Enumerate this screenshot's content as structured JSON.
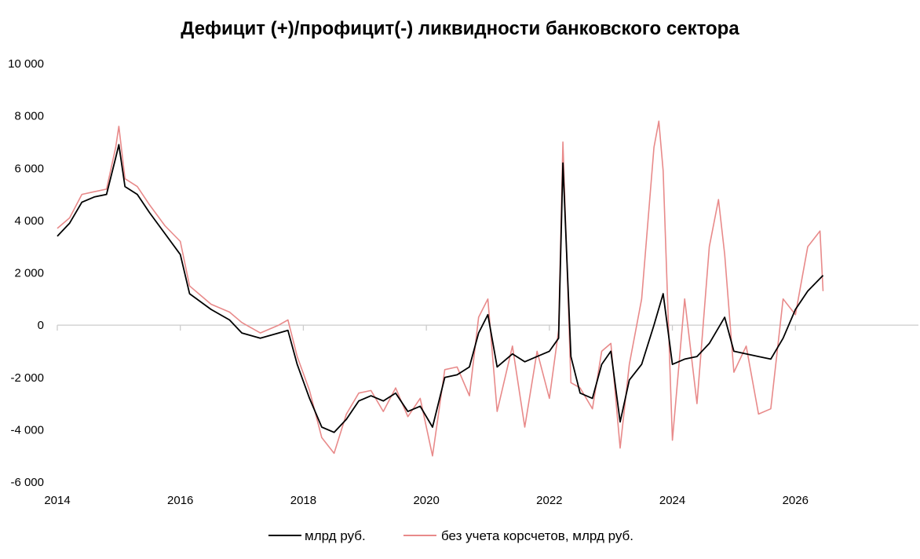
{
  "chart_data": {
    "type": "line",
    "title": "Дефицит (+)/профицит(-) ликвидности банковского сектора",
    "xlabel": "",
    "ylabel": "",
    "xlim": [
      2014,
      2028
    ],
    "ylim": [
      -6000,
      10000
    ],
    "x_ticks": [
      "2014",
      "2016",
      "2018",
      "2020",
      "2022",
      "2024",
      "2026"
    ],
    "y_ticks": [
      "10 000",
      "8 000",
      "6 000",
      "4 000",
      "2 000",
      "0",
      "-2 000",
      "-4 000",
      "-6 000"
    ],
    "grid": false,
    "legend_position": "bottom",
    "series": [
      {
        "name": "млрд руб.",
        "color": "#000000",
        "points": [
          [
            2014.0,
            3400
          ],
          [
            2014.2,
            3900
          ],
          [
            2014.4,
            4700
          ],
          [
            2014.6,
            4900
          ],
          [
            2014.8,
            5000
          ],
          [
            2014.95,
            6400
          ],
          [
            2015.0,
            6900
          ],
          [
            2015.1,
            5300
          ],
          [
            2015.3,
            5000
          ],
          [
            2015.5,
            4300
          ],
          [
            2015.75,
            3500
          ],
          [
            2016.0,
            2700
          ],
          [
            2016.15,
            1200
          ],
          [
            2016.5,
            600
          ],
          [
            2016.8,
            200
          ],
          [
            2017.0,
            -300
          ],
          [
            2017.3,
            -500
          ],
          [
            2017.6,
            -300
          ],
          [
            2017.75,
            -200
          ],
          [
            2017.9,
            -1500
          ],
          [
            2018.1,
            -2800
          ],
          [
            2018.3,
            -3900
          ],
          [
            2018.5,
            -4100
          ],
          [
            2018.7,
            -3600
          ],
          [
            2018.9,
            -2900
          ],
          [
            2019.1,
            -2700
          ],
          [
            2019.3,
            -2900
          ],
          [
            2019.5,
            -2600
          ],
          [
            2019.7,
            -3300
          ],
          [
            2019.9,
            -3100
          ],
          [
            2020.1,
            -3900
          ],
          [
            2020.3,
            -2000
          ],
          [
            2020.5,
            -1900
          ],
          [
            2020.7,
            -1600
          ],
          [
            2020.85,
            -300
          ],
          [
            2021.0,
            400
          ],
          [
            2021.15,
            -1600
          ],
          [
            2021.4,
            -1100
          ],
          [
            2021.6,
            -1400
          ],
          [
            2021.8,
            -1200
          ],
          [
            2022.0,
            -1000
          ],
          [
            2022.15,
            -500
          ],
          [
            2022.22,
            6200
          ],
          [
            2022.35,
            -1200
          ],
          [
            2022.5,
            -2600
          ],
          [
            2022.7,
            -2800
          ],
          [
            2022.85,
            -1500
          ],
          [
            2023.0,
            -1000
          ],
          [
            2023.15,
            -3700
          ],
          [
            2023.3,
            -2100
          ],
          [
            2023.5,
            -1500
          ],
          [
            2023.7,
            0
          ],
          [
            2023.85,
            1200
          ],
          [
            2024.0,
            -1500
          ],
          [
            2024.2,
            -1300
          ],
          [
            2024.4,
            -1200
          ],
          [
            2024.6,
            -700
          ],
          [
            2024.85,
            300
          ],
          [
            2025.0,
            -1000
          ],
          [
            2025.2,
            -1100
          ],
          [
            2025.4,
            -1200
          ],
          [
            2025.6,
            -1300
          ],
          [
            2025.8,
            -500
          ],
          [
            2026.0,
            600
          ],
          [
            2026.2,
            1300
          ],
          [
            2026.45,
            1900
          ]
        ]
      },
      {
        "name": "без учета корсчетов, млрд руб.",
        "color": "#e88a8a",
        "points": [
          [
            2014.0,
            3700
          ],
          [
            2014.2,
            4100
          ],
          [
            2014.4,
            5000
          ],
          [
            2014.6,
            5100
          ],
          [
            2014.8,
            5200
          ],
          [
            2014.95,
            6800
          ],
          [
            2015.0,
            7600
          ],
          [
            2015.1,
            5600
          ],
          [
            2015.3,
            5300
          ],
          [
            2015.5,
            4600
          ],
          [
            2015.75,
            3800
          ],
          [
            2016.0,
            3200
          ],
          [
            2016.15,
            1500
          ],
          [
            2016.5,
            800
          ],
          [
            2016.8,
            500
          ],
          [
            2017.0,
            100
          ],
          [
            2017.3,
            -300
          ],
          [
            2017.6,
            0
          ],
          [
            2017.75,
            200
          ],
          [
            2017.9,
            -1200
          ],
          [
            2018.1,
            -2500
          ],
          [
            2018.3,
            -4300
          ],
          [
            2018.5,
            -4900
          ],
          [
            2018.7,
            -3400
          ],
          [
            2018.9,
            -2600
          ],
          [
            2019.1,
            -2500
          ],
          [
            2019.3,
            -3300
          ],
          [
            2019.5,
            -2400
          ],
          [
            2019.7,
            -3500
          ],
          [
            2019.9,
            -2800
          ],
          [
            2020.1,
            -5000
          ],
          [
            2020.3,
            -1700
          ],
          [
            2020.5,
            -1600
          ],
          [
            2020.7,
            -2700
          ],
          [
            2020.85,
            300
          ],
          [
            2021.0,
            1000
          ],
          [
            2021.15,
            -3300
          ],
          [
            2021.4,
            -800
          ],
          [
            2021.6,
            -3900
          ],
          [
            2021.8,
            -1000
          ],
          [
            2022.0,
            -2800
          ],
          [
            2022.15,
            -200
          ],
          [
            2022.22,
            7000
          ],
          [
            2022.35,
            -2200
          ],
          [
            2022.5,
            -2400
          ],
          [
            2022.7,
            -3200
          ],
          [
            2022.85,
            -1000
          ],
          [
            2023.0,
            -700
          ],
          [
            2023.15,
            -4700
          ],
          [
            2023.3,
            -1500
          ],
          [
            2023.5,
            1000
          ],
          [
            2023.7,
            6800
          ],
          [
            2023.78,
            7800
          ],
          [
            2023.85,
            5900
          ],
          [
            2024.0,
            -4400
          ],
          [
            2024.2,
            1000
          ],
          [
            2024.4,
            -3000
          ],
          [
            2024.6,
            3000
          ],
          [
            2024.75,
            4800
          ],
          [
            2024.85,
            2700
          ],
          [
            2025.0,
            -1800
          ],
          [
            2025.2,
            -800
          ],
          [
            2025.4,
            -3400
          ],
          [
            2025.6,
            -3200
          ],
          [
            2025.8,
            1000
          ],
          [
            2026.0,
            400
          ],
          [
            2026.2,
            3000
          ],
          [
            2026.4,
            3600
          ],
          [
            2026.45,
            1300
          ]
        ]
      }
    ]
  }
}
